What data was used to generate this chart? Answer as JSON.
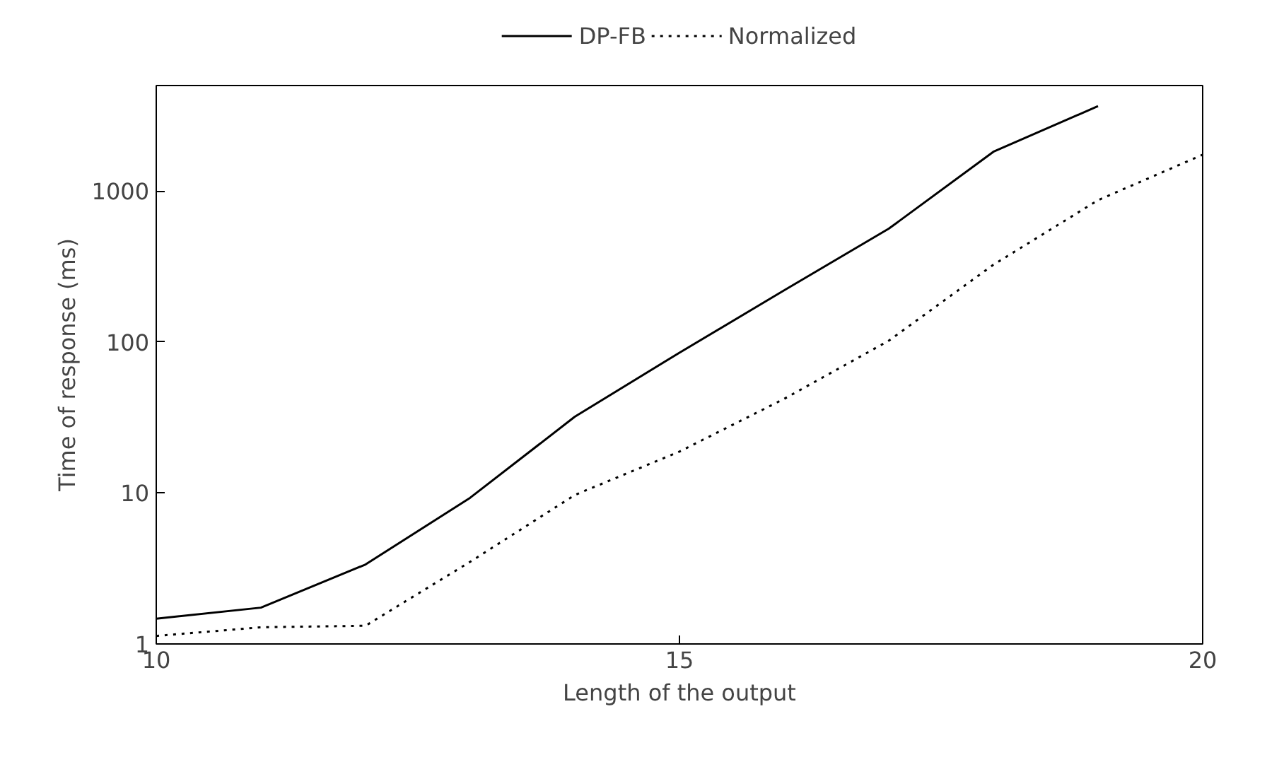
{
  "chart_data": {
    "type": "line",
    "xlabel": "Length of the output",
    "ylabel": "Time of response (ms)",
    "x": [
      10,
      11,
      12,
      13,
      14,
      15,
      16,
      17,
      18,
      19,
      20
    ],
    "series": [
      {
        "name": "DP-FB",
        "color": "#000000",
        "line_style": "solid",
        "values": [
          1.47,
          1.74,
          3.36,
          9.3,
          32,
          85,
          220,
          563,
          1820,
          3650,
          null
        ]
      },
      {
        "name": "Normalized",
        "color": "#000000",
        "line_style": "dotted",
        "values": [
          1.13,
          1.29,
          1.32,
          3.5,
          9.7,
          18.8,
          42,
          102,
          325,
          870,
          1740
        ]
      }
    ],
    "xlim": [
      10,
      20
    ],
    "xticks": [
      10,
      15,
      20
    ],
    "ylim": [
      1,
      5000
    ],
    "yticks": [
      1,
      10,
      100,
      1000
    ],
    "log": "y",
    "grid": false,
    "legend": "top",
    "marker": "none"
  }
}
